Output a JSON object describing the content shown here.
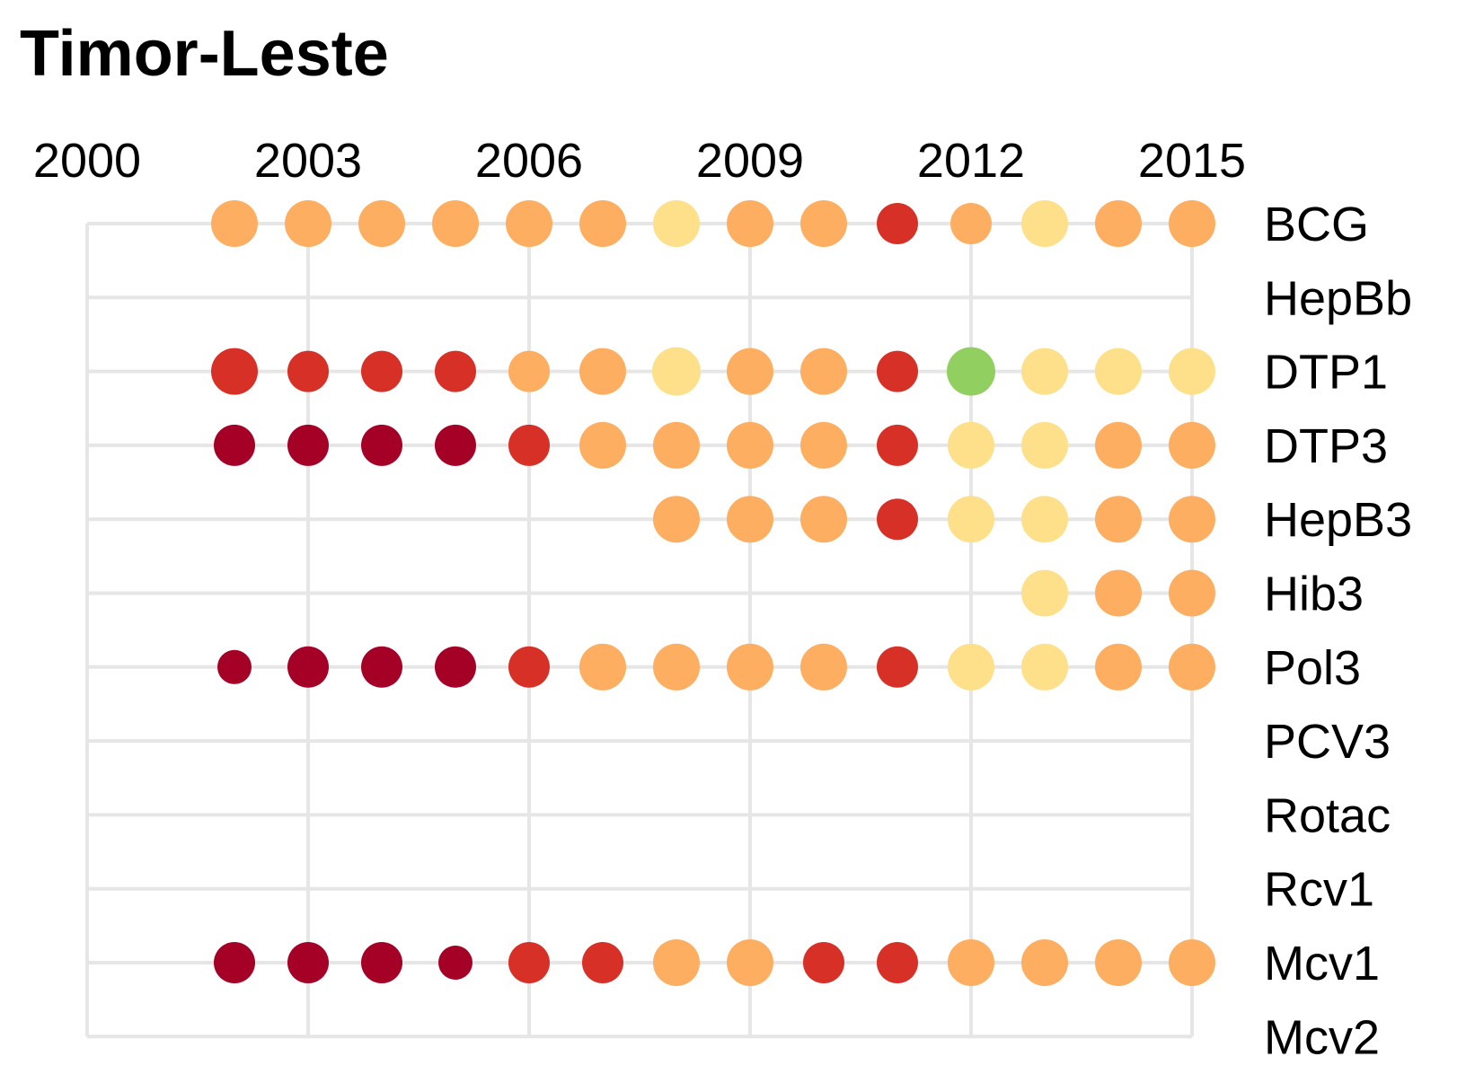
{
  "chart_data": {
    "type": "scatter",
    "title": "Timor-Leste",
    "xlabel": "",
    "ylabel": "",
    "x_ticks": [
      2000,
      2003,
      2006,
      2009,
      2012,
      2015
    ],
    "xlim": [
      2000,
      2015
    ],
    "grid": true,
    "axis_position": "top",
    "row_labels_position": "right",
    "vaccines": [
      "BCG",
      "HepBb",
      "DTP1",
      "DTP3",
      "HepB3",
      "Hib3",
      "Pol3",
      "PCV3",
      "Rotac",
      "Rcv1",
      "Mcv1",
      "Mcv2"
    ],
    "colors": {
      "darkred": "#a50026",
      "red": "#d73027",
      "orange": "#fdae61",
      "yellow": "#fee08b",
      "green": "#91cf60"
    },
    "series": [
      {
        "name": "BCG",
        "points": [
          {
            "year": 2002,
            "color": "orange",
            "size": "large"
          },
          {
            "year": 2003,
            "color": "orange",
            "size": "large"
          },
          {
            "year": 2004,
            "color": "orange",
            "size": "large"
          },
          {
            "year": 2005,
            "color": "orange",
            "size": "large"
          },
          {
            "year": 2006,
            "color": "orange",
            "size": "large"
          },
          {
            "year": 2007,
            "color": "orange",
            "size": "large"
          },
          {
            "year": 2008,
            "color": "yellow",
            "size": "large"
          },
          {
            "year": 2009,
            "color": "orange",
            "size": "large"
          },
          {
            "year": 2010,
            "color": "orange",
            "size": "large"
          },
          {
            "year": 2011,
            "color": "red",
            "size": "medium"
          },
          {
            "year": 2012,
            "color": "orange",
            "size": "medium"
          },
          {
            "year": 2013,
            "color": "yellow",
            "size": "large"
          },
          {
            "year": 2014,
            "color": "orange",
            "size": "large"
          },
          {
            "year": 2015,
            "color": "orange",
            "size": "large"
          }
        ]
      },
      {
        "name": "HepBb",
        "points": []
      },
      {
        "name": "DTP1",
        "points": [
          {
            "year": 2002,
            "color": "red",
            "size": "large"
          },
          {
            "year": 2003,
            "color": "red",
            "size": "medium"
          },
          {
            "year": 2004,
            "color": "red",
            "size": "medium"
          },
          {
            "year": 2005,
            "color": "red",
            "size": "medium"
          },
          {
            "year": 2006,
            "color": "orange",
            "size": "medium"
          },
          {
            "year": 2007,
            "color": "orange",
            "size": "large"
          },
          {
            "year": 2008,
            "color": "yellow",
            "size": "xlarge"
          },
          {
            "year": 2009,
            "color": "orange",
            "size": "large"
          },
          {
            "year": 2010,
            "color": "orange",
            "size": "large"
          },
          {
            "year": 2011,
            "color": "red",
            "size": "medium"
          },
          {
            "year": 2012,
            "color": "green",
            "size": "xlarge"
          },
          {
            "year": 2013,
            "color": "yellow",
            "size": "large"
          },
          {
            "year": 2014,
            "color": "yellow",
            "size": "large"
          },
          {
            "year": 2015,
            "color": "yellow",
            "size": "large"
          }
        ]
      },
      {
        "name": "DTP3",
        "points": [
          {
            "year": 2002,
            "color": "darkred",
            "size": "medium"
          },
          {
            "year": 2003,
            "color": "darkred",
            "size": "medium"
          },
          {
            "year": 2004,
            "color": "darkred",
            "size": "medium"
          },
          {
            "year": 2005,
            "color": "darkred",
            "size": "medium"
          },
          {
            "year": 2006,
            "color": "red",
            "size": "medium"
          },
          {
            "year": 2007,
            "color": "orange",
            "size": "large"
          },
          {
            "year": 2008,
            "color": "orange",
            "size": "large"
          },
          {
            "year": 2009,
            "color": "orange",
            "size": "large"
          },
          {
            "year": 2010,
            "color": "orange",
            "size": "large"
          },
          {
            "year": 2011,
            "color": "red",
            "size": "medium"
          },
          {
            "year": 2012,
            "color": "yellow",
            "size": "large"
          },
          {
            "year": 2013,
            "color": "yellow",
            "size": "large"
          },
          {
            "year": 2014,
            "color": "orange",
            "size": "large"
          },
          {
            "year": 2015,
            "color": "orange",
            "size": "large"
          }
        ]
      },
      {
        "name": "HepB3",
        "points": [
          {
            "year": 2008,
            "color": "orange",
            "size": "large"
          },
          {
            "year": 2009,
            "color": "orange",
            "size": "large"
          },
          {
            "year": 2010,
            "color": "orange",
            "size": "large"
          },
          {
            "year": 2011,
            "color": "red",
            "size": "medium"
          },
          {
            "year": 2012,
            "color": "yellow",
            "size": "large"
          },
          {
            "year": 2013,
            "color": "yellow",
            "size": "large"
          },
          {
            "year": 2014,
            "color": "orange",
            "size": "large"
          },
          {
            "year": 2015,
            "color": "orange",
            "size": "large"
          }
        ]
      },
      {
        "name": "Hib3",
        "points": [
          {
            "year": 2013,
            "color": "yellow",
            "size": "large"
          },
          {
            "year": 2014,
            "color": "orange",
            "size": "large"
          },
          {
            "year": 2015,
            "color": "orange",
            "size": "large"
          }
        ]
      },
      {
        "name": "Pol3",
        "points": [
          {
            "year": 2002,
            "color": "darkred",
            "size": "small"
          },
          {
            "year": 2003,
            "color": "darkred",
            "size": "medium"
          },
          {
            "year": 2004,
            "color": "darkred",
            "size": "medium"
          },
          {
            "year": 2005,
            "color": "darkred",
            "size": "medium"
          },
          {
            "year": 2006,
            "color": "red",
            "size": "medium"
          },
          {
            "year": 2007,
            "color": "orange",
            "size": "large"
          },
          {
            "year": 2008,
            "color": "orange",
            "size": "large"
          },
          {
            "year": 2009,
            "color": "orange",
            "size": "large"
          },
          {
            "year": 2010,
            "color": "orange",
            "size": "large"
          },
          {
            "year": 2011,
            "color": "red",
            "size": "medium"
          },
          {
            "year": 2012,
            "color": "yellow",
            "size": "large"
          },
          {
            "year": 2013,
            "color": "yellow",
            "size": "large"
          },
          {
            "year": 2014,
            "color": "orange",
            "size": "large"
          },
          {
            "year": 2015,
            "color": "orange",
            "size": "large"
          }
        ]
      },
      {
        "name": "PCV3",
        "points": []
      },
      {
        "name": "Rotac",
        "points": []
      },
      {
        "name": "Rcv1",
        "points": []
      },
      {
        "name": "Mcv1",
        "points": [
          {
            "year": 2002,
            "color": "darkred",
            "size": "medium"
          },
          {
            "year": 2003,
            "color": "darkred",
            "size": "medium"
          },
          {
            "year": 2004,
            "color": "darkred",
            "size": "medium"
          },
          {
            "year": 2005,
            "color": "darkred",
            "size": "small"
          },
          {
            "year": 2006,
            "color": "red",
            "size": "medium"
          },
          {
            "year": 2007,
            "color": "red",
            "size": "medium"
          },
          {
            "year": 2008,
            "color": "orange",
            "size": "large"
          },
          {
            "year": 2009,
            "color": "orange",
            "size": "large"
          },
          {
            "year": 2010,
            "color": "red",
            "size": "medium"
          },
          {
            "year": 2011,
            "color": "red",
            "size": "medium"
          },
          {
            "year": 2012,
            "color": "orange",
            "size": "large"
          },
          {
            "year": 2013,
            "color": "orange",
            "size": "large"
          },
          {
            "year": 2014,
            "color": "orange",
            "size": "large"
          },
          {
            "year": 2015,
            "color": "orange",
            "size": "large"
          }
        ]
      },
      {
        "name": "Mcv2",
        "points": []
      }
    ]
  }
}
